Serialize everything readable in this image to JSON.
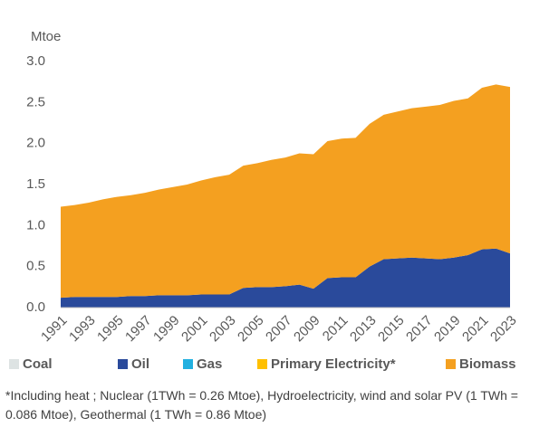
{
  "chart_data": {
    "type": "stacked_area",
    "y_label": "Mtoe",
    "note": "*Including heat ; Nuclear (1TWh = 0.26 Mtoe), Hydroelectricity, wind and solar PV (1 TWh = 0.086 Mtoe), Geothermal (1 TWh = 0.86 Mtoe)",
    "x": [
      1991,
      1992,
      1993,
      1994,
      1995,
      1996,
      1997,
      1998,
      1999,
      2000,
      2001,
      2002,
      2003,
      2004,
      2005,
      2006,
      2007,
      2008,
      2009,
      2010,
      2011,
      2012,
      2013,
      2014,
      2015,
      2016,
      2017,
      2018,
      2019,
      2020,
      2021,
      2022,
      2023
    ],
    "xlim": [
      1991,
      2023
    ],
    "xticks": [
      1991,
      1993,
      1995,
      1997,
      1999,
      2001,
      2003,
      2005,
      2007,
      2009,
      2011,
      2013,
      2015,
      2017,
      2019,
      2021,
      2023
    ],
    "ylim": [
      0,
      3
    ],
    "yticks": [
      {
        "value": 0,
        "label": "0.0"
      },
      {
        "value": 0.5,
        "label": "0.5"
      },
      {
        "value": 1,
        "label": "1.0"
      },
      {
        "value": 1.5,
        "label": "1.5"
      },
      {
        "value": 2,
        "label": "2.0"
      },
      {
        "value": 2.5,
        "label": "2.5"
      },
      {
        "value": 3,
        "label": "3.0"
      }
    ],
    "grid": false,
    "series": [
      {
        "name": "Coal",
        "color": "#dde3e3",
        "values": [
          0,
          0,
          0,
          0,
          0,
          0,
          0,
          0,
          0,
          0,
          0,
          0,
          0,
          0,
          0,
          0,
          0,
          0,
          0,
          0,
          0,
          0,
          0,
          0,
          0,
          0,
          0,
          0,
          0,
          0,
          0,
          0,
          0
        ]
      },
      {
        "name": "Oil",
        "color": "#2a4a9b",
        "values": [
          0.12,
          0.13,
          0.13,
          0.13,
          0.13,
          0.14,
          0.14,
          0.15,
          0.15,
          0.15,
          0.16,
          0.16,
          0.16,
          0.24,
          0.25,
          0.25,
          0.26,
          0.28,
          0.23,
          0.36,
          0.37,
          0.37,
          0.5,
          0.59,
          0.6,
          0.61,
          0.6,
          0.59,
          0.61,
          0.64,
          0.71,
          0.72,
          0.66
        ]
      },
      {
        "name": "Gas",
        "color": "#22b0e0",
        "values": [
          0,
          0,
          0,
          0,
          0,
          0,
          0,
          0,
          0,
          0,
          0,
          0,
          0,
          0,
          0,
          0,
          0,
          0,
          0,
          0,
          0,
          0,
          0,
          0,
          0,
          0,
          0,
          0,
          0,
          0,
          0,
          0,
          0
        ]
      },
      {
        "name": "Primary Electricity*",
        "color": "#ffc000",
        "values": [
          0,
          0,
          0,
          0,
          0,
          0,
          0,
          0,
          0,
          0,
          0,
          0,
          0,
          0,
          0,
          0,
          0,
          0,
          0,
          0,
          0,
          0,
          0,
          0,
          0,
          0,
          0,
          0,
          0,
          0,
          0,
          0,
          0
        ]
      },
      {
        "name": "Biomass",
        "color": "#f4a020",
        "values": [
          1.11,
          1.12,
          1.15,
          1.19,
          1.22,
          1.23,
          1.26,
          1.29,
          1.32,
          1.35,
          1.39,
          1.43,
          1.46,
          1.49,
          1.51,
          1.55,
          1.57,
          1.6,
          1.64,
          1.67,
          1.69,
          1.7,
          1.74,
          1.76,
          1.79,
          1.82,
          1.85,
          1.88,
          1.91,
          1.91,
          1.97,
          2,
          2.03
        ]
      }
    ]
  }
}
